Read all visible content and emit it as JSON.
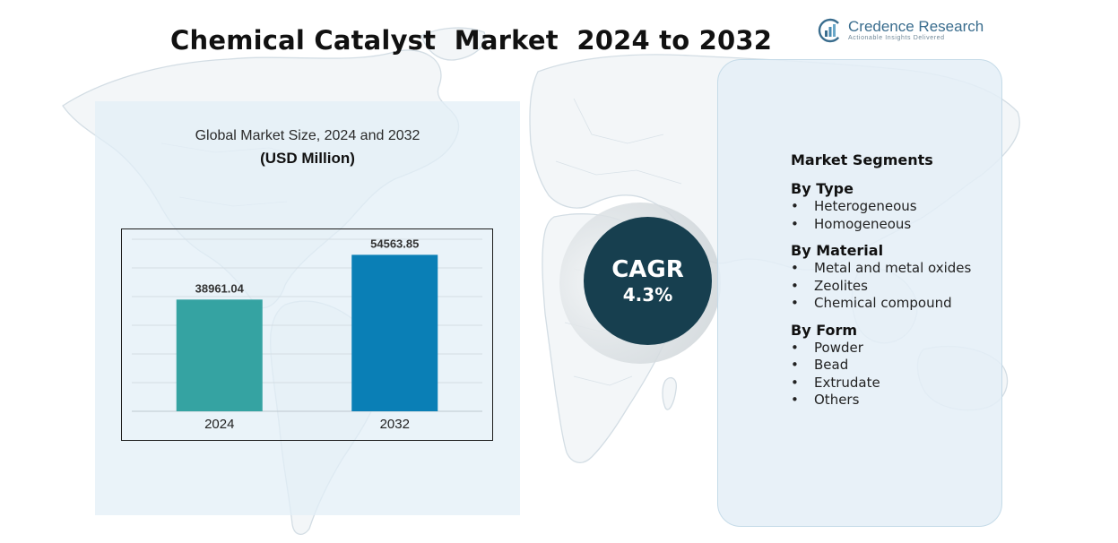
{
  "title": "Chemical Catalyst  Market  2024 to 2032",
  "brand": {
    "name": "Credence Research",
    "tagline": "Actionable Insights Delivered"
  },
  "chart_panel": {
    "subtitle": "Global Market Size, 2024 and 2032",
    "unit": "(USD Million)"
  },
  "chart_data": {
    "type": "bar",
    "categories": [
      "2024",
      "2032"
    ],
    "values": [
      38961.04,
      54563.85
    ],
    "value_labels": [
      "38961.04",
      "54563.85"
    ],
    "colors": [
      "#35a3a2",
      "#0a7fb6"
    ],
    "ylim": [
      0,
      60000
    ],
    "grid": true,
    "title": "",
    "xlabel": "",
    "ylabel": ""
  },
  "cagr": {
    "label": "CAGR",
    "value": "4.3%"
  },
  "segments": {
    "heading": "Market Segments",
    "groups": [
      {
        "title": "By Type",
        "items": [
          "Heterogeneous",
          "Homogeneous"
        ]
      },
      {
        "title": "By Material",
        "items": [
          "Metal and metal oxides",
          "Zeolites",
          "Chemical compound"
        ]
      },
      {
        "title": "By Form",
        "items": [
          "Powder",
          "Bead",
          "Extrudate",
          "Others"
        ]
      }
    ]
  },
  "colors": {
    "accent_dark": "#173f4f",
    "panel_bg": "#e2eef6",
    "bar_2024": "#35a3a2",
    "bar_2032": "#0a7fb6"
  }
}
